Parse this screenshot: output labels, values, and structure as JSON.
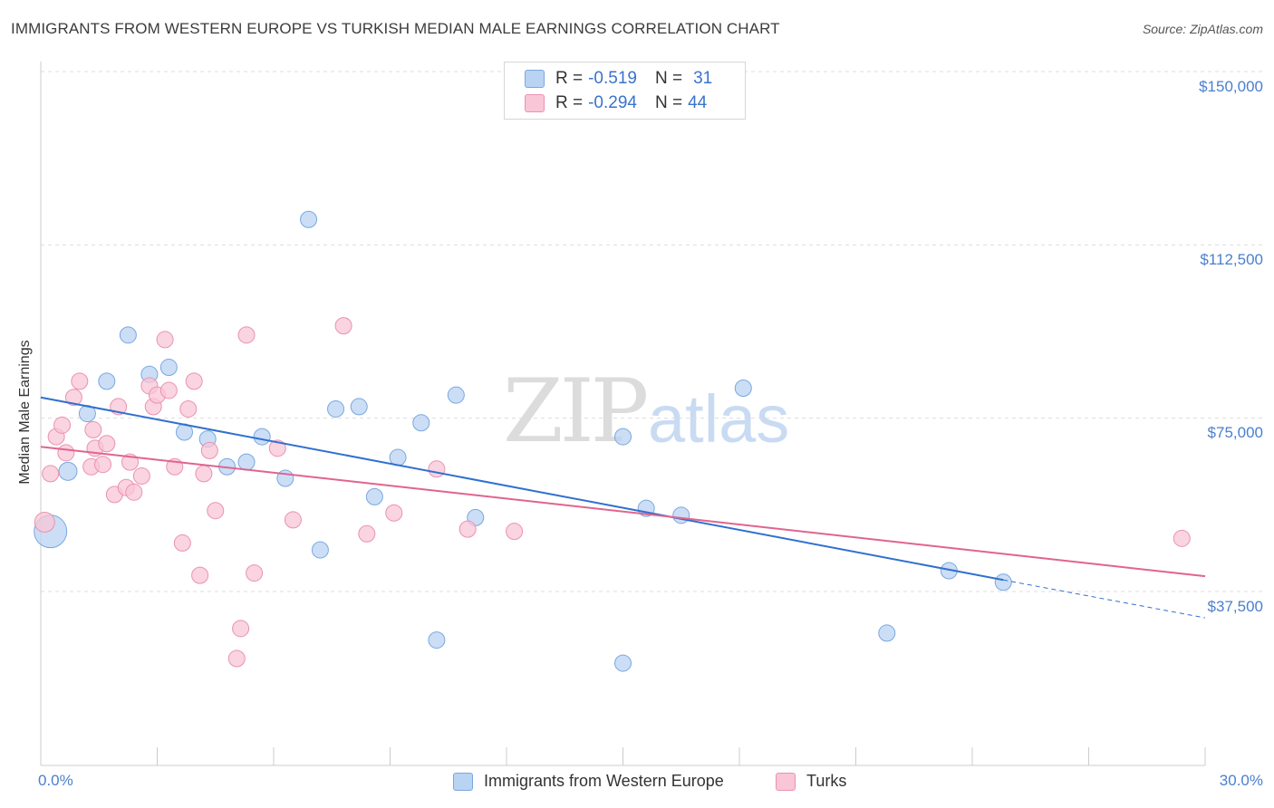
{
  "header": {
    "title": "IMMIGRANTS FROM WESTERN EUROPE VS TURKISH MEDIAN MALE EARNINGS CORRELATION CHART",
    "source": "Source: ZipAtlas.com"
  },
  "watermark": {
    "zip": "ZIP",
    "atlas": "atlas"
  },
  "legend": {
    "rows": [
      {
        "r_label": "R = ",
        "r_value": "-0.519",
        "n_label": "N = ",
        "n_value": "31"
      },
      {
        "r_label": "R = ",
        "r_value": "-0.294",
        "n_label": "N = ",
        "n_value": "44"
      }
    ]
  },
  "bottom_legend": {
    "series1": "Immigrants from Western Europe",
    "series2": "Turks"
  },
  "colors": {
    "blue_fill": "#b9d3f3",
    "blue_stroke": "#7aa7e0",
    "blue_line": "#3070d0",
    "pink_fill": "#f8c6d6",
    "pink_stroke": "#ea92b0",
    "pink_line": "#e0648f",
    "tick_text": "#4a7fd0",
    "grid": "#dddddd"
  },
  "chart_data": {
    "type": "scatter",
    "title": "IMMIGRANTS FROM WESTERN EUROPE VS TURKISH MEDIAN MALE EARNINGS CORRELATION CHART",
    "xlabel": "",
    "ylabel": "Median Male Earnings",
    "xlim": [
      0,
      30
    ],
    "ylim": [
      0,
      152000
    ],
    "x_tick_labels": [
      "0.0%",
      "30.0%"
    ],
    "y_ticks": [
      37500,
      75000,
      112500,
      150000
    ],
    "y_tick_labels": [
      "$37,500",
      "$75,000",
      "$112,500",
      "$150,000"
    ],
    "grid": true,
    "legend_position": "top-center",
    "series": [
      {
        "name": "Immigrants from Western Europe",
        "color": "#b9d3f3",
        "points": [
          [
            0.25,
            50500,
            18
          ],
          [
            0.7,
            63500,
            10
          ],
          [
            1.2,
            76000,
            9
          ],
          [
            1.7,
            83000,
            9
          ],
          [
            2.25,
            93000,
            9
          ],
          [
            2.8,
            84500,
            9
          ],
          [
            3.3,
            86000,
            9
          ],
          [
            3.7,
            72000,
            9
          ],
          [
            4.3,
            70500,
            9
          ],
          [
            4.8,
            64500,
            9
          ],
          [
            5.3,
            65500,
            9
          ],
          [
            5.7,
            71000,
            9
          ],
          [
            6.3,
            62000,
            9
          ],
          [
            6.9,
            118000,
            9
          ],
          [
            7.2,
            46500,
            9
          ],
          [
            7.6,
            77000,
            9
          ],
          [
            8.2,
            77500,
            9
          ],
          [
            8.6,
            58000,
            9
          ],
          [
            9.2,
            66500,
            9
          ],
          [
            9.8,
            74000,
            9
          ],
          [
            10.2,
            27000,
            9
          ],
          [
            10.7,
            80000,
            9
          ],
          [
            11.2,
            53500,
            9
          ],
          [
            15.0,
            71000,
            9
          ],
          [
            15.0,
            22000,
            9
          ],
          [
            15.6,
            55500,
            9
          ],
          [
            16.5,
            54000,
            9
          ],
          [
            18.1,
            81500,
            9
          ],
          [
            21.8,
            28500,
            9
          ],
          [
            23.4,
            42000,
            9
          ],
          [
            24.8,
            39500,
            9
          ]
        ]
      },
      {
        "name": "Turks",
        "color": "#f8c6d6",
        "points": [
          [
            0.1,
            52500,
            11
          ],
          [
            0.25,
            63000,
            9
          ],
          [
            0.4,
            71000,
            9
          ],
          [
            0.55,
            73500,
            9
          ],
          [
            0.65,
            67500,
            9
          ],
          [
            0.85,
            79500,
            9
          ],
          [
            1.0,
            83000,
            9
          ],
          [
            1.3,
            64500,
            9
          ],
          [
            1.35,
            72500,
            9
          ],
          [
            1.4,
            68500,
            9
          ],
          [
            1.6,
            65000,
            9
          ],
          [
            1.7,
            69500,
            9
          ],
          [
            1.9,
            58500,
            9
          ],
          [
            2.0,
            77500,
            9
          ],
          [
            2.2,
            60000,
            9
          ],
          [
            2.3,
            65500,
            9
          ],
          [
            2.4,
            59000,
            9
          ],
          [
            2.6,
            62500,
            9
          ],
          [
            2.8,
            82000,
            9
          ],
          [
            2.9,
            77500,
            9
          ],
          [
            3.0,
            80000,
            9
          ],
          [
            3.2,
            92000,
            9
          ],
          [
            3.3,
            81000,
            9
          ],
          [
            3.45,
            64500,
            9
          ],
          [
            3.65,
            48000,
            9
          ],
          [
            3.8,
            77000,
            9
          ],
          [
            3.95,
            83000,
            9
          ],
          [
            4.1,
            41000,
            9
          ],
          [
            4.2,
            63000,
            9
          ],
          [
            4.35,
            68000,
            9
          ],
          [
            4.5,
            55000,
            9
          ],
          [
            5.05,
            23000,
            9
          ],
          [
            5.15,
            29500,
            9
          ],
          [
            5.3,
            93000,
            9
          ],
          [
            5.5,
            41500,
            9
          ],
          [
            6.1,
            68500,
            9
          ],
          [
            6.5,
            53000,
            9
          ],
          [
            7.8,
            95000,
            9
          ],
          [
            8.4,
            50000,
            9
          ],
          [
            9.1,
            54500,
            9
          ],
          [
            10.2,
            64000,
            9
          ],
          [
            11.0,
            51000,
            9
          ],
          [
            12.2,
            50500,
            9
          ],
          [
            29.4,
            49000,
            9
          ]
        ]
      }
    ],
    "trendlines": [
      {
        "series": "Immigrants from Western Europe",
        "x": [
          0,
          24.8
        ],
        "y": [
          79500,
          40000
        ],
        "dashed_extension_to": [
          30,
          31800
        ]
      },
      {
        "series": "Turks",
        "x": [
          0,
          30
        ],
        "y": [
          68800,
          40800
        ]
      }
    ]
  }
}
